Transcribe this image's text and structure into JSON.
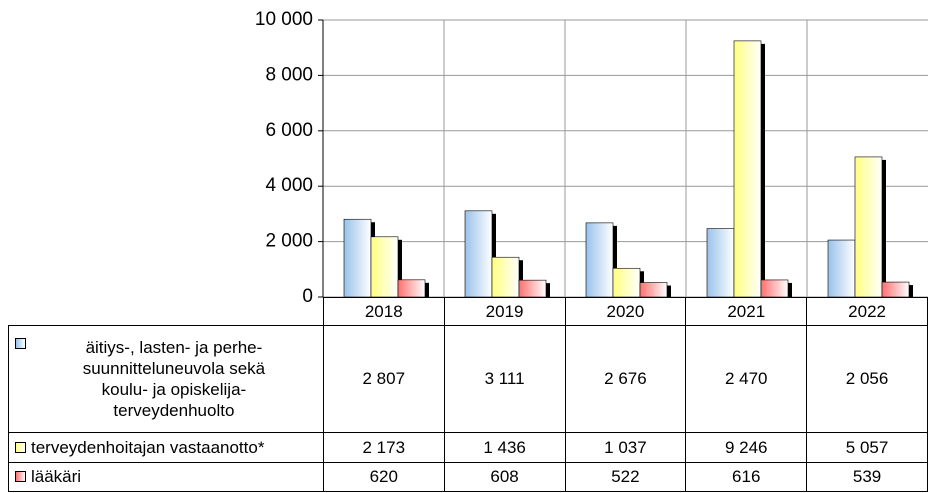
{
  "chart_data": {
    "type": "bar",
    "categories": [
      "2018",
      "2019",
      "2020",
      "2021",
      "2022"
    ],
    "series": [
      {
        "name": "äitiys-, lasten- ja perhe-suunnitteluneuvola sekä koulu- ja opiskelija-terveydenhuolto",
        "color": "#99c2ea",
        "values": [
          2807,
          3111,
          2676,
          2470,
          2056
        ],
        "value_labels": [
          "2 807",
          "3 111",
          "2 676",
          "2 470",
          "2 056"
        ]
      },
      {
        "name": "terveydenhoitajan vastaanotto*",
        "color": "#ffff80",
        "values": [
          2173,
          1436,
          1037,
          9246,
          5057
        ],
        "value_labels": [
          "2 173",
          "1 436",
          "1 037",
          "9 246",
          "5 057"
        ]
      },
      {
        "name": "lääkäri",
        "color": "#ff7070",
        "values": [
          620,
          608,
          522,
          616,
          539
        ],
        "value_labels": [
          "620",
          "608",
          "522",
          "616",
          "539"
        ]
      }
    ],
    "ylim": [
      0,
      10000
    ],
    "yticks": [
      0,
      {
        "value": 2000,
        "label": "2 000"
      },
      {
        "value": 4000,
        "label": "4 000"
      },
      {
        "value": 6000,
        "label": "6 000"
      },
      {
        "value": 8000,
        "label": "8 000"
      },
      {
        "value": 10000,
        "label": "10 000"
      }
    ],
    "grid": true
  }
}
